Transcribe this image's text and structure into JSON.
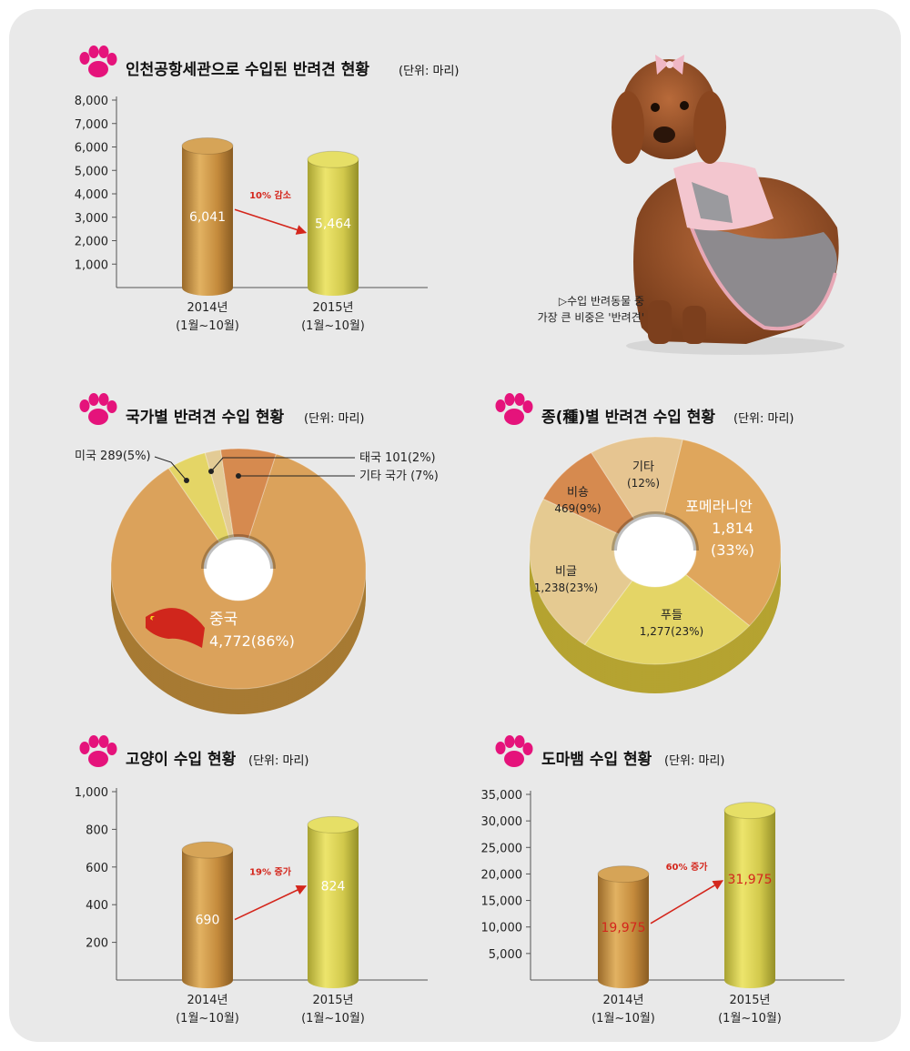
{
  "colors": {
    "paw": "#e5137b",
    "bar_2014": "#c8923e",
    "bar_2015": "#d8cc50",
    "arrow": "#d4261c",
    "label_red": "#d4261c",
    "pie1_china": "#dba25b",
    "pie1_usa": "#e4d566",
    "pie1_thai": "#e3cb95",
    "pie1_other": "#d68a4f",
    "pie2_pomeranian": "#dfa65c",
    "pie2_poodle": "#e4d566",
    "pie2_beagle": "#e5ca91",
    "pie2_bichon": "#d68a4f",
    "pie2_other": "#e6c591"
  },
  "titles": {
    "dogs_import": {
      "main": "인천공항세관으로 수입된 반려견 현황",
      "unit": "(단위: 마리)"
    },
    "by_country": {
      "main": "국가별 반려견 수입 현황",
      "unit": "(단위: 마리)"
    },
    "by_breed": {
      "main": "종(種)별 반려견 수입 현황",
      "unit": "(단위: 마리)"
    },
    "cats": {
      "main": "고양이 수입 현황",
      "unit": "(단위: 마리)"
    },
    "hamsters": {
      "main": "도마뱀 수입 현황",
      "unit": "(단위: 마리)"
    }
  },
  "photo_caption": {
    "line1": "▷수입 반려동물 중",
    "line2": "가장 큰 비중은 '반려견'"
  },
  "chart_data": [
    {
      "id": "dogs",
      "type": "bar",
      "title": "인천공항세관으로 수입된 반려견 현황",
      "unit": "(단위: 마리)",
      "categories": [
        "2014년\n(1월~10월)",
        "2015년\n(1월~10월)"
      ],
      "category_lines": [
        [
          "2014년",
          "(1월~10월)"
        ],
        [
          "2015년",
          "(1월~10월)"
        ]
      ],
      "values": [
        6041,
        5464
      ],
      "value_labels": [
        "6,041",
        "5,464"
      ],
      "ylim": [
        0,
        8000
      ],
      "yticks": [
        1000,
        2000,
        3000,
        4000,
        5000,
        6000,
        7000,
        8000
      ],
      "ytick_labels": [
        "1,000",
        "2,000",
        "3,000",
        "4,000",
        "5,000",
        "6,000",
        "7,000",
        "8,000"
      ],
      "annotation": "10% 감소",
      "red_values": false
    },
    {
      "id": "country",
      "type": "pie",
      "title": "국가별 반려견 수입 현황",
      "unit": "(단위: 마리)",
      "slices": [
        {
          "label": "중국",
          "sub": "4,772(86%)",
          "value": 86
        },
        {
          "label": "미국 289(5%)",
          "sub": "",
          "value": 5
        },
        {
          "label": "태국 101(2%)",
          "sub": "",
          "value": 2
        },
        {
          "label": "기타 국가 (7%)",
          "sub": "",
          "value": 7
        }
      ]
    },
    {
      "id": "breed",
      "type": "pie",
      "title": "종(種)별 반려견 수입 현황",
      "unit": "(단위: 마리)",
      "slices": [
        {
          "label": "포메라니안",
          "sub": "1,814",
          "sub2": "(33%)",
          "value": 33
        },
        {
          "label": "푸들",
          "sub": "1,277(23%)",
          "sub2": "",
          "value": 23
        },
        {
          "label": "비글",
          "sub": "1,238(23%)",
          "sub2": "",
          "value": 23
        },
        {
          "label": "비숑",
          "sub": "469(9%)",
          "sub2": "",
          "value": 9
        },
        {
          "label": "기타",
          "sub": "(12%)",
          "sub2": "",
          "value": 12
        }
      ]
    },
    {
      "id": "cats",
      "type": "bar",
      "title": "고양이 수입 현황",
      "unit": "(단위: 마리)",
      "categories": [
        "2014년\n(1월~10월)",
        "2015년\n(1월~10월)"
      ],
      "category_lines": [
        [
          "2014년",
          "(1월~10월)"
        ],
        [
          "2015년",
          "(1월~10월)"
        ]
      ],
      "values": [
        690,
        824
      ],
      "value_labels": [
        "690",
        "824"
      ],
      "ylim": [
        0,
        1000
      ],
      "yticks": [
        200,
        400,
        600,
        800,
        1000
      ],
      "ytick_labels": [
        "200",
        "400",
        "600",
        "800",
        "1,000"
      ],
      "annotation": "19% 증가",
      "red_values": false
    },
    {
      "id": "hamsters",
      "type": "bar",
      "title": "도마뱀 수입 현황",
      "unit": "(단위: 마리)",
      "categories": [
        "2014년\n(1월~10월)",
        "2015년\n(1월~10월)"
      ],
      "category_lines": [
        [
          "2014년",
          "(1월~10월)"
        ],
        [
          "2015년",
          "(1월~10월)"
        ]
      ],
      "values": [
        19975,
        31975
      ],
      "value_labels": [
        "19,975",
        "31,975"
      ],
      "ylim": [
        0,
        35000
      ],
      "yticks": [
        5000,
        10000,
        15000,
        20000,
        25000,
        30000,
        35000
      ],
      "ytick_labels": [
        "5,000",
        "10,000",
        "15,000",
        "20,000",
        "25,000",
        "30,000",
        "35,000"
      ],
      "annotation": "60% 증가",
      "red_values": true
    }
  ]
}
